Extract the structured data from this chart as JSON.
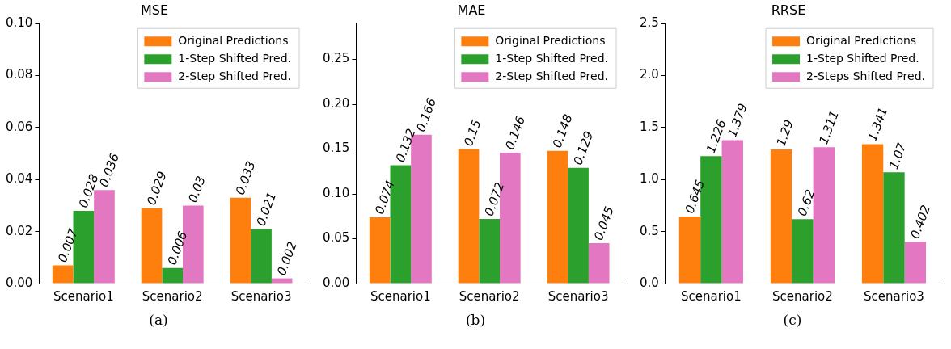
{
  "chart_data": [
    {
      "type": "bar",
      "title": "MSE",
      "categories": [
        "Scenario1",
        "Scenario2",
        "Scenario3"
      ],
      "ylim": [
        0,
        0.1
      ],
      "yticks": [
        {
          "value": 0,
          "label": "0.00"
        },
        {
          "value": 0.02,
          "label": "0.02"
        },
        {
          "value": 0.04,
          "label": "0.04"
        },
        {
          "value": 0.06,
          "label": "0.06"
        },
        {
          "value": 0.08,
          "label": "0.08"
        },
        {
          "value": 0.1,
          "label": "0.10"
        }
      ],
      "grid": false,
      "legend": "top right",
      "data_labels": true,
      "annotations": [
        "(a)"
      ],
      "series": [
        {
          "name": "Original Predictions",
          "color": "#ff7f0e",
          "values": [
            0.007,
            0.029,
            0.033
          ]
        },
        {
          "name": "1-Step Shifted Pred.",
          "color": "#2ca02c",
          "values": [
            0.028,
            0.006,
            0.021
          ]
        },
        {
          "name": "2-Step Shifted Pred.",
          "color": "#e377c2",
          "values": [
            0.036,
            0.03,
            0.002
          ]
        }
      ]
    },
    {
      "type": "bar",
      "title": "MAE",
      "categories": [
        "Scenario1",
        "Scenario2",
        "Scenario3"
      ],
      "ylim": [
        0,
        0.29
      ],
      "yticks": [
        {
          "value": 0,
          "label": "0.00"
        },
        {
          "value": 0.05,
          "label": "0.05"
        },
        {
          "value": 0.1,
          "label": "0.10"
        },
        {
          "value": 0.15,
          "label": "0.15"
        },
        {
          "value": 0.2,
          "label": "0.20"
        },
        {
          "value": 0.25,
          "label": "0.25"
        }
      ],
      "grid": false,
      "legend": "top right",
      "data_labels": true,
      "annotations": [
        "(b)"
      ],
      "series": [
        {
          "name": "Original Predictions",
          "color": "#ff7f0e",
          "values": [
            0.074,
            0.15,
            0.148
          ]
        },
        {
          "name": "1-Step Shifted Pred.",
          "color": "#2ca02c",
          "values": [
            0.132,
            0.072,
            0.129
          ]
        },
        {
          "name": "2-Step Shifted Pred.",
          "color": "#e377c2",
          "values": [
            0.166,
            0.146,
            0.045
          ]
        }
      ]
    },
    {
      "type": "bar",
      "title": "RRSE",
      "categories": [
        "Scenario1",
        "Scenario2",
        "Scenario3"
      ],
      "ylim": [
        0,
        2.5
      ],
      "yticks": [
        {
          "value": 0,
          "label": "0.0"
        },
        {
          "value": 0.5,
          "label": "0.5"
        },
        {
          "value": 1,
          "label": "1.0"
        },
        {
          "value": 1.5,
          "label": "1.5"
        },
        {
          "value": 2,
          "label": "2.0"
        },
        {
          "value": 2.5,
          "label": "2.5"
        }
      ],
      "grid": false,
      "legend": "top right",
      "data_labels": true,
      "annotations": [
        "(c)"
      ],
      "series": [
        {
          "name": "Original Predictions",
          "color": "#ff7f0e",
          "values": [
            0.645,
            1.29,
            1.341
          ]
        },
        {
          "name": "1-Step Shifted Pred.",
          "color": "#2ca02c",
          "values": [
            1.226,
            0.62,
            1.07
          ]
        },
        {
          "name": "2-Steps Shifted Pred.",
          "color": "#e377c2",
          "values": [
            1.379,
            1.311,
            0.402
          ]
        }
      ]
    }
  ]
}
